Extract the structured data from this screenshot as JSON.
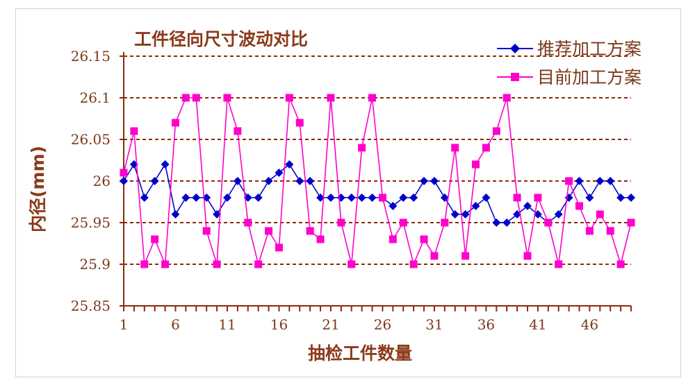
{
  "chart_data": {
    "type": "line",
    "title": "工件径向尺寸波动对比",
    "xlabel": "抽检工件数量",
    "ylabel": "内径(mm)",
    "x": [
      1,
      2,
      3,
      4,
      5,
      6,
      7,
      8,
      9,
      10,
      11,
      12,
      13,
      14,
      15,
      16,
      17,
      18,
      19,
      20,
      21,
      22,
      23,
      24,
      25,
      26,
      27,
      28,
      29,
      30,
      31,
      32,
      33,
      34,
      35,
      36,
      37,
      38,
      39,
      40,
      41,
      42,
      43,
      44,
      45,
      46,
      47,
      48,
      49,
      50
    ],
    "xlim": [
      1,
      50
    ],
    "xticks": [
      "1",
      "6",
      "11",
      "16",
      "21",
      "26",
      "31",
      "36",
      "41",
      "46"
    ],
    "ylim": [
      25.85,
      26.15
    ],
    "yticks": [
      "25.85",
      "25.9",
      "25.95",
      "26",
      "26.05",
      "26.1",
      "26.15"
    ],
    "grid": "horizontal dashed",
    "legend_position": "top-right",
    "series": [
      {
        "name": "推荐加工方案",
        "color": "#0000cc",
        "marker": "diamond",
        "values": [
          26.0,
          26.02,
          25.98,
          26.0,
          26.02,
          25.96,
          25.98,
          25.98,
          25.98,
          25.96,
          25.98,
          26.0,
          25.98,
          25.98,
          26.0,
          26.01,
          26.02,
          26.0,
          26.0,
          25.98,
          25.98,
          25.98,
          25.98,
          25.98,
          25.98,
          25.98,
          25.97,
          25.98,
          25.98,
          26.0,
          26.0,
          25.98,
          25.96,
          25.96,
          25.97,
          25.98,
          25.95,
          25.95,
          25.96,
          25.97,
          25.96,
          25.95,
          25.96,
          25.98,
          26.0,
          25.98,
          26.0,
          26.0,
          25.98,
          25.98
        ]
      },
      {
        "name": "目前加工方案",
        "color": "#ff00cc",
        "marker": "square",
        "values": [
          26.01,
          26.06,
          25.9,
          25.93,
          25.9,
          26.07,
          26.1,
          26.1,
          25.94,
          25.9,
          26.1,
          26.06,
          25.95,
          25.9,
          25.94,
          25.92,
          26.1,
          26.07,
          25.94,
          25.93,
          26.1,
          25.95,
          25.9,
          26.04,
          26.1,
          25.98,
          25.93,
          25.95,
          25.9,
          25.93,
          25.91,
          25.95,
          26.04,
          25.91,
          26.02,
          26.04,
          26.06,
          26.1,
          25.98,
          25.91,
          25.98,
          25.95,
          25.9,
          26.0,
          25.97,
          25.94,
          25.96,
          25.94,
          25.9,
          25.95
        ]
      }
    ]
  }
}
